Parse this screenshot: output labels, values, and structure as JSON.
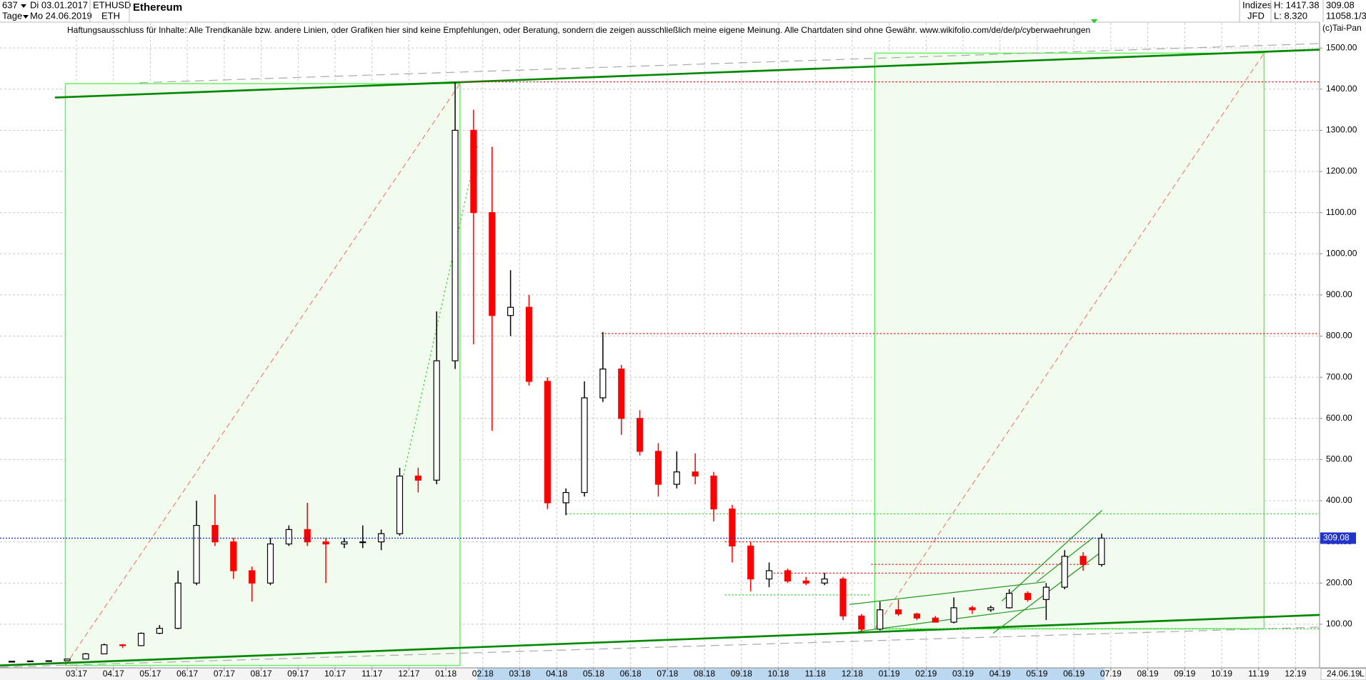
{
  "header": {
    "count": "637",
    "start_date": "Di 03.01.2017",
    "period": "Tage",
    "end_date": "Mo 24.06.2019",
    "symbol": "ETHUSD",
    "short": "ETH",
    "name": "Ethereum",
    "market": "Indizes",
    "broker": "JFD",
    "high": "H: 1417.38",
    "low": "L: 8.320",
    "extra": "11058.1/3",
    "disclaimer": "Haftungsausschluss für Inhalte: Alle Trendkanäle bzw. andere Linien, oder Grafiken hier sind keine Empfehlungen, oder Beratung, sondern die zeigen ausschließlich meine eigene Meinung. Alle Chartdaten sind ohne Gewähr.  www.wikifolio.com/de/de/p/cyberwaehrungen",
    "copyright": "(c)Tai-Pan",
    "axis_date": "24.06.19",
    "axis_mode": "L"
  },
  "chart_data": {
    "type": "candlestick",
    "up_color": "#000000",
    "down_color": "#ff0000",
    "grid": true,
    "last_price": 309.08,
    "last_price_color": "#2233cc",
    "xlim": [
      -0.07,
      35.65
    ],
    "ylim": [
      -6,
      1561
    ],
    "xticks": [
      {
        "value": 2,
        "label": "03.17"
      },
      {
        "value": 3,
        "label": "04.17"
      },
      {
        "value": 4,
        "label": "05.17"
      },
      {
        "value": 5,
        "label": "06.17"
      },
      {
        "value": 6,
        "label": "07.17"
      },
      {
        "value": 7,
        "label": "08.17"
      },
      {
        "value": 8,
        "label": "09.17"
      },
      {
        "value": 9,
        "label": "10.17"
      },
      {
        "value": 10,
        "label": "11.17"
      },
      {
        "value": 11,
        "label": "12.17"
      },
      {
        "value": 12,
        "label": "01.18"
      },
      {
        "value": 13,
        "label": "02.18"
      },
      {
        "value": 14,
        "label": "03.18"
      },
      {
        "value": 15,
        "label": "04.18"
      },
      {
        "value": 16,
        "label": "05.18"
      },
      {
        "value": 17,
        "label": "06.18"
      },
      {
        "value": 18,
        "label": "07.18"
      },
      {
        "value": 19,
        "label": "08.18"
      },
      {
        "value": 20,
        "label": "09.18"
      },
      {
        "value": 21,
        "label": "10.18"
      },
      {
        "value": 22,
        "label": "11.18"
      },
      {
        "value": 23,
        "label": "12.18"
      },
      {
        "value": 24,
        "label": "01.19"
      },
      {
        "value": 25,
        "label": "02.19"
      },
      {
        "value": 26,
        "label": "03.19"
      },
      {
        "value": 27,
        "label": "04.19"
      },
      {
        "value": 28,
        "label": "05.19"
      },
      {
        "value": 29,
        "label": "06.19"
      },
      {
        "value": 30,
        "label": "07.19"
      },
      {
        "value": 31,
        "label": "08.19"
      },
      {
        "value": 32,
        "label": "09.19"
      },
      {
        "value": 33,
        "label": "10.19"
      },
      {
        "value": 34,
        "label": "11.19"
      },
      {
        "value": 35,
        "label": "12.19"
      }
    ],
    "yticks": [
      {
        "value": 100,
        "label": "100.00"
      },
      {
        "value": 200,
        "label": "200.00"
      },
      {
        "value": 300,
        "label": "300.00"
      },
      {
        "value": 400,
        "label": "400.00"
      },
      {
        "value": 500,
        "label": "500.00"
      },
      {
        "value": 600,
        "label": "600.00"
      },
      {
        "value": 700,
        "label": "700.00"
      },
      {
        "value": 800,
        "label": "800.00"
      },
      {
        "value": 900,
        "label": "900.00"
      },
      {
        "value": 1000,
        "label": "1000.00"
      },
      {
        "value": 1100,
        "label": "1100.00"
      },
      {
        "value": 1200,
        "label": "1200.00"
      },
      {
        "value": 1300,
        "label": "1300.00"
      },
      {
        "value": 1400,
        "label": "1400.00"
      },
      {
        "value": 1500,
        "label": "1500.00"
      }
    ],
    "x": [
      0.25,
      0.75,
      1.25,
      1.75,
      2.25,
      2.75,
      3.25,
      3.75,
      4.25,
      4.75,
      5.25,
      5.75,
      6.25,
      6.75,
      7.25,
      7.75,
      8.25,
      8.75,
      9.25,
      9.75,
      10.25,
      10.75,
      11.25,
      11.75,
      12.25,
      12.75,
      13.25,
      13.75,
      14.25,
      14.75,
      15.25,
      15.75,
      16.25,
      16.75,
      17.25,
      17.75,
      18.25,
      18.75,
      19.25,
      19.75,
      20.25,
      20.75,
      21.25,
      21.75,
      22.25,
      22.75,
      23.25,
      23.75,
      24.25,
      24.75,
      25.25,
      25.75,
      26.25,
      26.75,
      27.25,
      27.75,
      28.25,
      28.75,
      29.25,
      29.75
    ],
    "open": [
      8,
      10,
      10.7,
      11.3,
      15.5,
      28,
      50,
      48,
      78,
      90,
      200,
      340,
      300,
      230,
      200,
      295,
      330,
      300,
      295,
      300,
      300,
      320,
      460,
      450,
      740,
      1300,
      1100,
      850,
      870,
      690,
      395,
      420,
      650,
      720,
      600,
      520,
      440,
      470,
      460,
      380,
      290,
      210,
      230,
      205,
      200,
      210,
      120,
      88,
      135,
      125,
      115,
      105,
      140,
      135,
      140,
      175,
      160,
      190,
      265,
      245
    ],
    "high": [
      11,
      11,
      12,
      16,
      30,
      53,
      52,
      80,
      98,
      230,
      400,
      415,
      310,
      240,
      310,
      340,
      395,
      310,
      310,
      340,
      330,
      480,
      480,
      860,
      1417.38,
      1350,
      1260,
      960,
      900,
      700,
      430,
      690,
      810,
      730,
      620,
      540,
      520,
      515,
      470,
      390,
      300,
      250,
      235,
      215,
      225,
      215,
      125,
      155,
      160,
      128,
      120,
      165,
      145,
      145,
      185,
      180,
      200,
      280,
      275,
      320
    ],
    "low": [
      8.32,
      9.5,
      10.5,
      11,
      15,
      28,
      42,
      47,
      76,
      88,
      195,
      290,
      210,
      155,
      195,
      290,
      290,
      200,
      285,
      285,
      280,
      315,
      420,
      440,
      720,
      780,
      570,
      800,
      680,
      380,
      365,
      410,
      640,
      560,
      510,
      410,
      430,
      440,
      350,
      250,
      180,
      190,
      200,
      195,
      195,
      110,
      82,
      85,
      120,
      110,
      105,
      102,
      125,
      130,
      138,
      155,
      110,
      185,
      230,
      240
    ],
    "close": [
      10,
      10.7,
      11.3,
      15.5,
      28,
      50,
      48,
      78,
      90,
      200,
      340,
      300,
      230,
      200,
      295,
      330,
      300,
      295,
      300,
      300,
      320,
      460,
      450,
      740,
      1300,
      1100,
      850,
      870,
      690,
      395,
      420,
      650,
      720,
      600,
      520,
      440,
      470,
      460,
      380,
      290,
      210,
      230,
      205,
      200,
      210,
      120,
      88,
      135,
      125,
      115,
      105,
      140,
      135,
      140,
      175,
      160,
      190,
      265,
      245,
      309.08
    ]
  }
}
